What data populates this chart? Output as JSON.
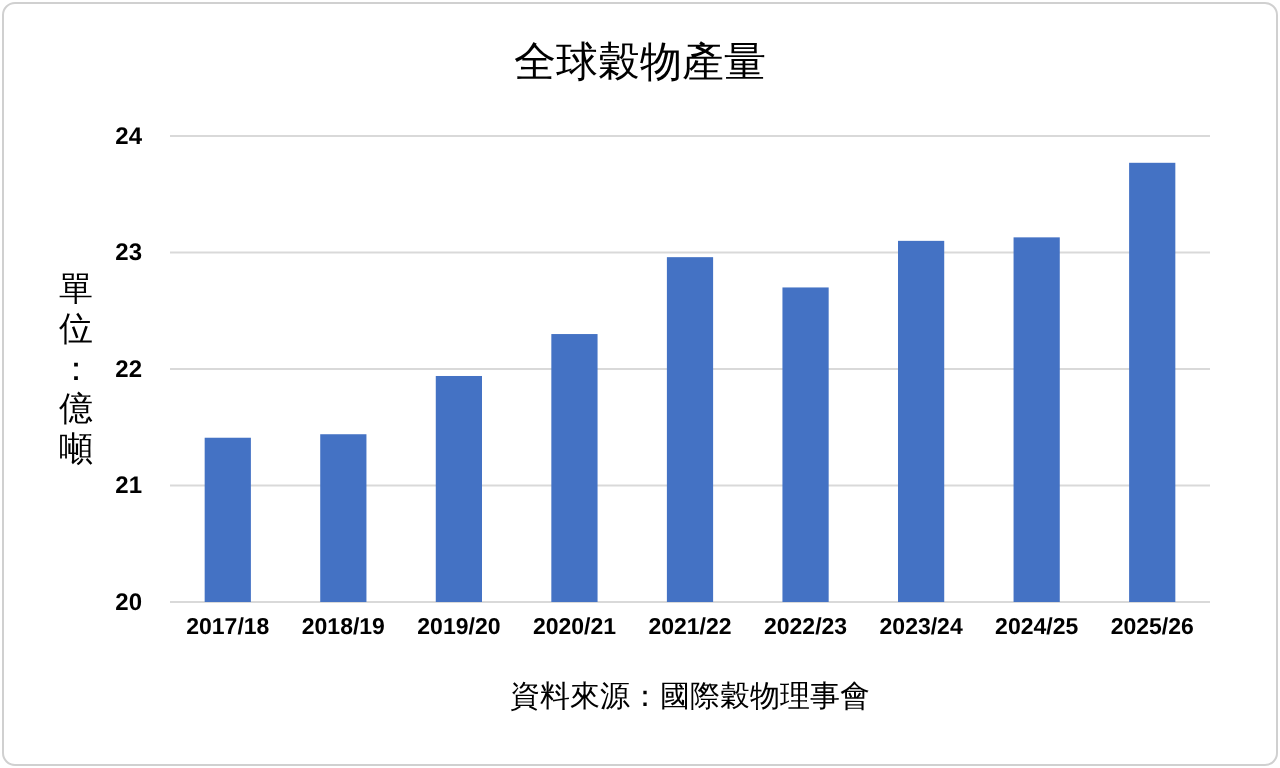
{
  "chart_data": {
    "type": "bar",
    "title": "全球穀物產量",
    "ylabel": "單位：億噸",
    "annotations": [
      "資料來源：國際穀物理事會"
    ],
    "categories": [
      "2017/18",
      "2018/19",
      "2019/20",
      "2020/21",
      "2021/22",
      "2022/23",
      "2023/24",
      "2024/25",
      "2025/26"
    ],
    "values": [
      21.41,
      21.44,
      21.94,
      22.3,
      22.96,
      22.7,
      23.1,
      23.13,
      23.77
    ],
    "color": "#4472c4",
    "ylim": [
      20,
      24
    ],
    "yticks": [
      20,
      21,
      22,
      23,
      24
    ],
    "grid": "y"
  }
}
